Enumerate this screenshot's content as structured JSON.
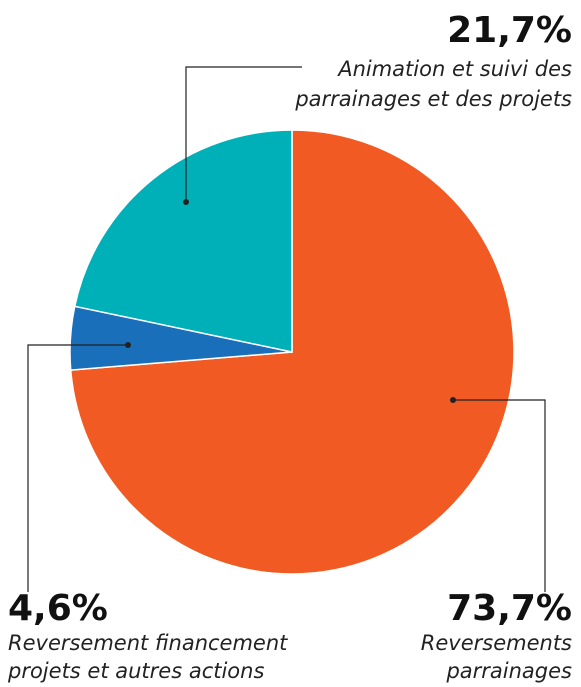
{
  "chart_data": {
    "type": "pie",
    "categories": [
      [
        "Reversements",
        "parrainages"
      ],
      [
        "Reversement financement",
        "projets et autres actions"
      ],
      [
        "Animation et suivi des",
        "parrainages et des projets"
      ]
    ],
    "values": [
      73.7,
      4.6,
      21.7
    ],
    "value_labels": [
      "73,7%",
      "4,6%",
      "21,7%"
    ],
    "colors": [
      "#f15a22",
      "#1a6fba",
      "#00b0b9"
    ]
  }
}
